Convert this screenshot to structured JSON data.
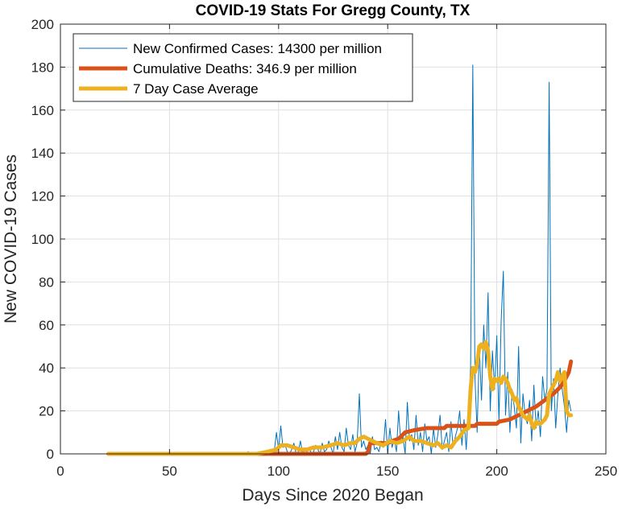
{
  "chart_data": {
    "type": "line",
    "title": "COVID-19 Stats For Gregg County, TX",
    "xlabel": "Days Since 2020 Began",
    "ylabel": "New COVID-19 Cases",
    "xlim": [
      0,
      250
    ],
    "ylim": [
      0,
      200
    ],
    "xticks": [
      0,
      50,
      100,
      150,
      200,
      250
    ],
    "yticks": [
      0,
      20,
      40,
      60,
      80,
      100,
      120,
      140,
      160,
      180,
      200
    ],
    "grid": true,
    "legend_position": "top-left",
    "series": [
      {
        "name": "New Confirmed Cases: 14300 per million",
        "color": "#0072BD",
        "line_width": "thin",
        "points": [
          [
            22,
            0
          ],
          [
            70,
            0
          ],
          [
            85,
            0
          ],
          [
            86,
            1
          ],
          [
            87,
            0
          ],
          [
            95,
            0
          ],
          [
            96,
            2
          ],
          [
            97,
            0
          ],
          [
            98,
            1
          ],
          [
            99,
            10
          ],
          [
            100,
            2
          ],
          [
            101,
            13
          ],
          [
            102,
            3
          ],
          [
            103,
            4
          ],
          [
            104,
            1
          ],
          [
            105,
            0
          ],
          [
            106,
            2
          ],
          [
            107,
            5
          ],
          [
            108,
            0
          ],
          [
            109,
            1
          ],
          [
            110,
            6
          ],
          [
            111,
            0
          ],
          [
            112,
            2
          ],
          [
            113,
            1
          ],
          [
            114,
            3
          ],
          [
            115,
            0
          ],
          [
            116,
            1
          ],
          [
            117,
            4
          ],
          [
            118,
            2
          ],
          [
            119,
            0
          ],
          [
            120,
            5
          ],
          [
            121,
            1
          ],
          [
            122,
            2
          ],
          [
            123,
            6
          ],
          [
            124,
            3
          ],
          [
            125,
            0
          ],
          [
            126,
            8
          ],
          [
            127,
            2
          ],
          [
            128,
            10
          ],
          [
            129,
            3
          ],
          [
            130,
            1
          ],
          [
            131,
            12
          ],
          [
            132,
            4
          ],
          [
            133,
            2
          ],
          [
            134,
            9
          ],
          [
            135,
            1
          ],
          [
            136,
            5
          ],
          [
            137,
            28
          ],
          [
            138,
            3
          ],
          [
            139,
            6
          ],
          [
            140,
            2
          ],
          [
            141,
            4
          ],
          [
            142,
            0
          ],
          [
            143,
            8
          ],
          [
            144,
            2
          ],
          [
            145,
            3
          ],
          [
            146,
            1
          ],
          [
            147,
            6
          ],
          [
            148,
            3
          ],
          [
            149,
            16
          ],
          [
            150,
            0
          ],
          [
            151,
            12
          ],
          [
            152,
            3
          ],
          [
            153,
            7
          ],
          [
            154,
            1
          ],
          [
            155,
            20
          ],
          [
            156,
            5
          ],
          [
            157,
            8
          ],
          [
            158,
            0
          ],
          [
            159,
            24
          ],
          [
            160,
            6
          ],
          [
            161,
            9
          ],
          [
            162,
            2
          ],
          [
            163,
            18
          ],
          [
            164,
            4
          ],
          [
            165,
            10
          ],
          [
            166,
            1
          ],
          [
            167,
            14
          ],
          [
            168,
            6
          ],
          [
            169,
            8
          ],
          [
            170,
            0
          ],
          [
            171,
            12
          ],
          [
            172,
            3
          ],
          [
            173,
            9
          ],
          [
            174,
            18
          ],
          [
            175,
            2
          ],
          [
            176,
            6
          ],
          [
            177,
            10
          ],
          [
            178,
            1
          ],
          [
            179,
            15
          ],
          [
            180,
            3
          ],
          [
            181,
            8
          ],
          [
            182,
            12
          ],
          [
            183,
            20
          ],
          [
            184,
            4
          ],
          [
            185,
            16
          ],
          [
            186,
            2
          ],
          [
            187,
            22
          ],
          [
            188,
            40
          ],
          [
            189,
            181
          ],
          [
            190,
            35
          ],
          [
            191,
            10
          ],
          [
            192,
            50
          ],
          [
            193,
            25
          ],
          [
            194,
            60
          ],
          [
            195,
            40
          ],
          [
            196,
            75
          ],
          [
            197,
            20
          ],
          [
            198,
            48
          ],
          [
            199,
            30
          ],
          [
            200,
            55
          ],
          [
            201,
            15
          ],
          [
            202,
            62
          ],
          [
            203,
            85
          ],
          [
            204,
            18
          ],
          [
            205,
            38
          ],
          [
            206,
            10
          ],
          [
            207,
            30
          ],
          [
            208,
            22
          ],
          [
            209,
            12
          ],
          [
            210,
            50
          ],
          [
            211,
            5
          ],
          [
            212,
            28
          ],
          [
            213,
            18
          ],
          [
            214,
            14
          ],
          [
            215,
            25
          ],
          [
            216,
            6
          ],
          [
            217,
            32
          ],
          [
            218,
            12
          ],
          [
            219,
            20
          ],
          [
            220,
            8
          ],
          [
            221,
            36
          ],
          [
            222,
            25
          ],
          [
            223,
            30
          ],
          [
            224,
            173
          ],
          [
            225,
            20
          ],
          [
            226,
            35
          ],
          [
            227,
            12
          ],
          [
            228,
            28
          ],
          [
            229,
            40
          ],
          [
            230,
            30
          ],
          [
            231,
            22
          ],
          [
            232,
            10
          ],
          [
            233,
            25
          ],
          [
            234,
            20
          ]
        ]
      },
      {
        "name": "Cumulative Deaths: 346.9 per million",
        "color": "#D95319",
        "line_width": "thick",
        "points": [
          [
            22,
            0
          ],
          [
            140,
            0
          ],
          [
            141,
            1
          ],
          [
            142,
            5
          ],
          [
            150,
            5
          ],
          [
            152,
            6
          ],
          [
            155,
            7
          ],
          [
            158,
            10
          ],
          [
            162,
            11
          ],
          [
            168,
            12
          ],
          [
            176,
            12
          ],
          [
            177,
            13
          ],
          [
            190,
            13
          ],
          [
            191,
            14
          ],
          [
            200,
            14
          ],
          [
            201,
            15
          ],
          [
            206,
            16
          ],
          [
            210,
            18
          ],
          [
            214,
            20
          ],
          [
            218,
            22
          ],
          [
            222,
            25
          ],
          [
            226,
            28
          ],
          [
            229,
            31
          ],
          [
            231,
            34
          ],
          [
            233,
            38
          ],
          [
            234,
            43
          ]
        ]
      },
      {
        "name": "7 Day Case Average",
        "color": "#EDB120",
        "line_width": "thick",
        "points": [
          [
            22,
            0
          ],
          [
            90,
            0
          ],
          [
            95,
            1
          ],
          [
            99,
            2
          ],
          [
            101,
            4
          ],
          [
            104,
            4
          ],
          [
            107,
            3
          ],
          [
            110,
            2
          ],
          [
            113,
            2
          ],
          [
            116,
            3
          ],
          [
            120,
            3
          ],
          [
            124,
            4
          ],
          [
            127,
            5
          ],
          [
            130,
            4
          ],
          [
            133,
            5
          ],
          [
            135,
            5
          ],
          [
            137,
            7
          ],
          [
            139,
            8
          ],
          [
            141,
            7
          ],
          [
            143,
            6
          ],
          [
            145,
            5
          ],
          [
            148,
            4
          ],
          [
            151,
            6
          ],
          [
            154,
            5
          ],
          [
            157,
            6
          ],
          [
            160,
            8
          ],
          [
            162,
            6
          ],
          [
            165,
            6
          ],
          [
            168,
            5
          ],
          [
            171,
            4
          ],
          [
            173,
            5
          ],
          [
            175,
            3
          ],
          [
            177,
            4
          ],
          [
            179,
            3
          ],
          [
            181,
            6
          ],
          [
            183,
            8
          ],
          [
            185,
            11
          ],
          [
            187,
            12
          ],
          [
            188,
            30
          ],
          [
            189,
            40
          ],
          [
            190,
            38
          ],
          [
            191,
            42
          ],
          [
            192,
            50
          ],
          [
            193,
            51
          ],
          [
            194,
            49
          ],
          [
            195,
            52
          ],
          [
            196,
            48
          ],
          [
            197,
            36
          ],
          [
            198,
            30
          ],
          [
            199,
            35
          ],
          [
            200,
            34
          ],
          [
            201,
            35
          ],
          [
            202,
            33
          ],
          [
            203,
            36
          ],
          [
            204,
            35
          ],
          [
            205,
            33
          ],
          [
            206,
            30
          ],
          [
            207,
            28
          ],
          [
            208,
            25
          ],
          [
            209,
            26
          ],
          [
            210,
            22
          ],
          [
            211,
            20
          ],
          [
            212,
            18
          ],
          [
            213,
            17
          ],
          [
            214,
            16
          ],
          [
            215,
            18
          ],
          [
            216,
            14
          ],
          [
            217,
            12
          ],
          [
            218,
            15
          ],
          [
            219,
            14
          ],
          [
            220,
            14
          ],
          [
            221,
            15
          ],
          [
            222,
            16
          ],
          [
            223,
            18
          ],
          [
            224,
            28
          ],
          [
            225,
            30
          ],
          [
            226,
            32
          ],
          [
            227,
            34
          ],
          [
            228,
            38
          ],
          [
            229,
            34
          ],
          [
            230,
            36
          ],
          [
            231,
            38
          ],
          [
            232,
            20
          ],
          [
            233,
            18
          ],
          [
            234,
            18
          ]
        ]
      }
    ]
  }
}
